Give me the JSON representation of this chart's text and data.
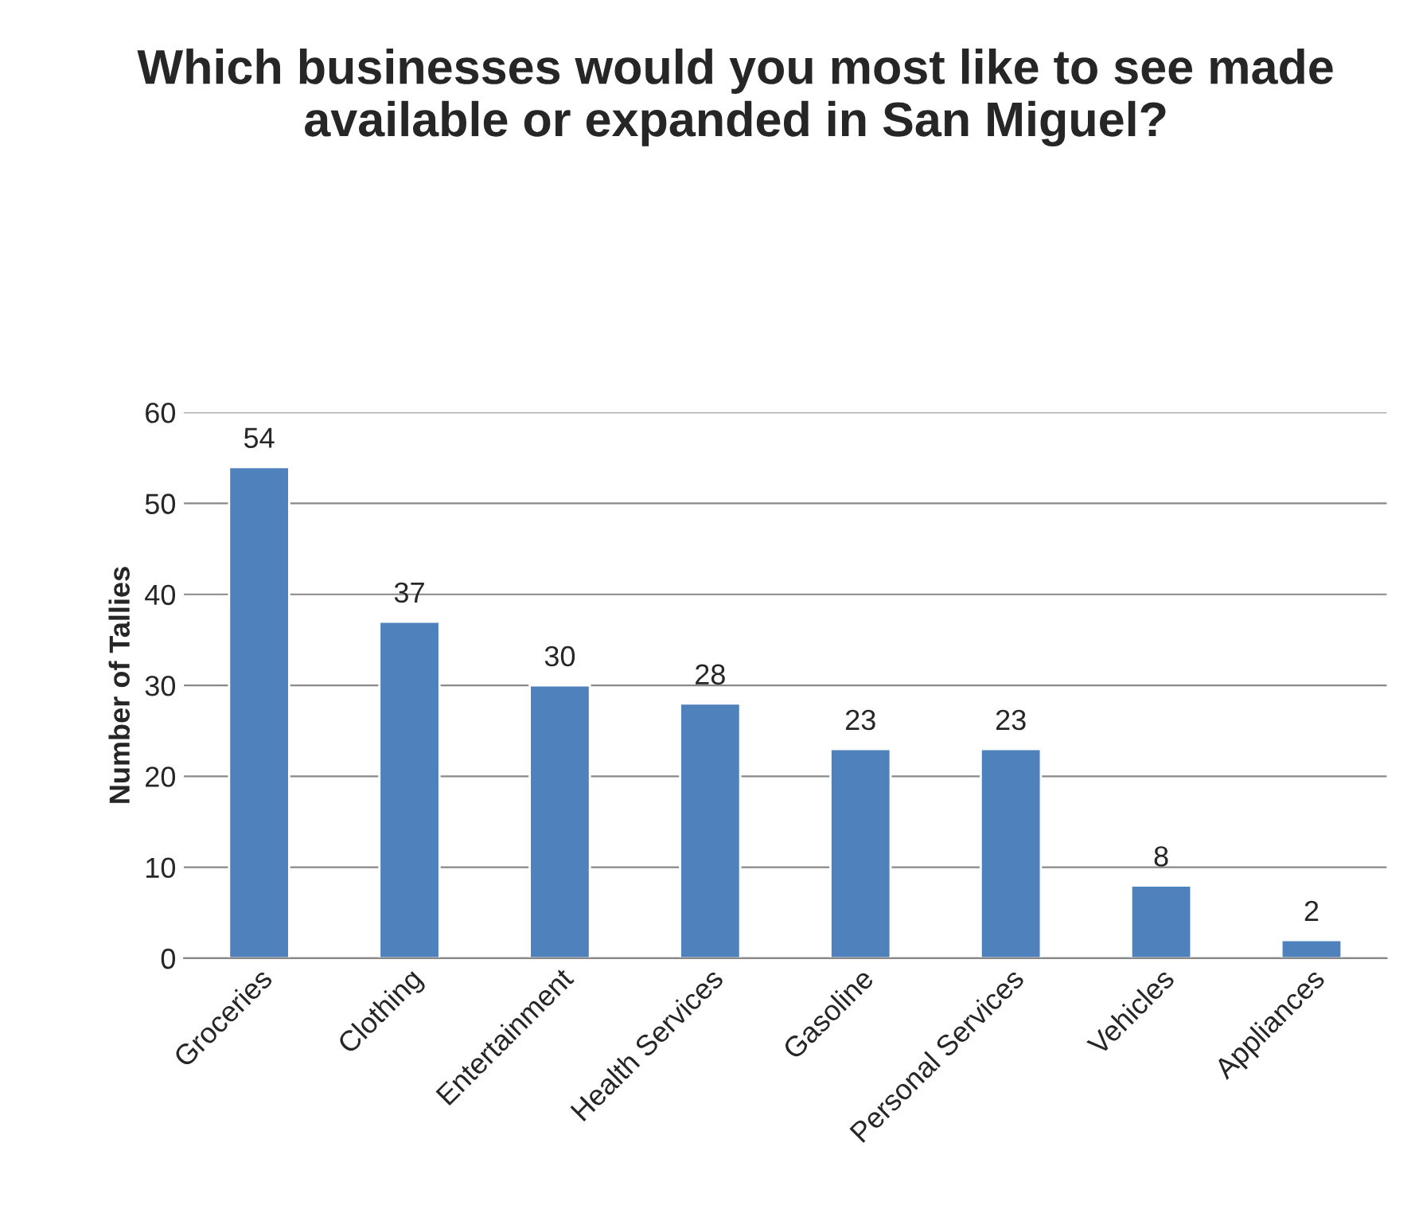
{
  "chart_data": {
    "type": "bar",
    "title": "Which businesses would you most like to see made available or expanded in San Miguel?",
    "ylabel": "Number of Tallies",
    "categories": [
      "Groceries",
      "Clothing",
      "Entertainment",
      "Health Services",
      "Gasoline",
      "Personal Services",
      "Vehicles",
      "Appliances"
    ],
    "values": [
      54,
      37,
      30,
      28,
      23,
      23,
      8,
      2
    ],
    "color": "#4f81bd",
    "ylim": [
      0,
      60
    ],
    "yticks": [
      0,
      10,
      20,
      30,
      40,
      50,
      60
    ],
    "grid": "y",
    "data_labels": true
  }
}
